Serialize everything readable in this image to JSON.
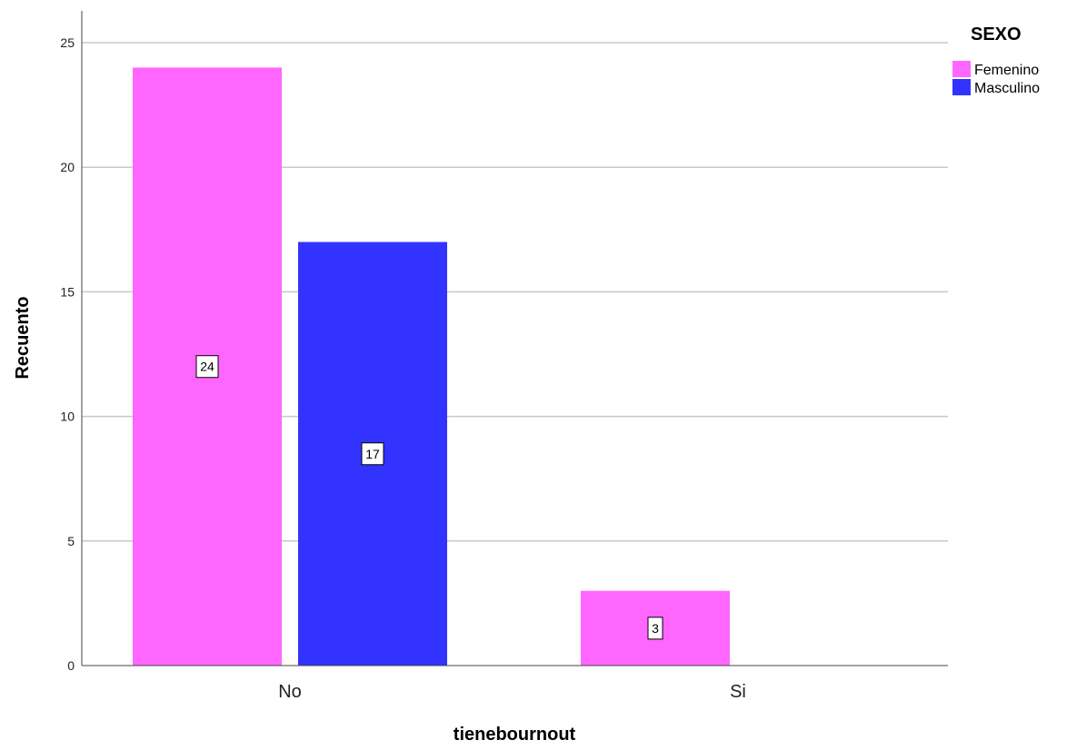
{
  "chart_data": {
    "type": "bar",
    "categories": [
      "No",
      "Si"
    ],
    "series": [
      {
        "name": "Femenino",
        "values": [
          24,
          3
        ],
        "color": "#ff66ff"
      },
      {
        "name": "Masculino",
        "values": [
          17,
          0
        ],
        "color": "#3333ff"
      }
    ],
    "xlabel": "tienebournout",
    "ylabel": "Recuento",
    "ylim": [
      0,
      25
    ],
    "yticks": [
      0,
      5,
      10,
      15,
      20,
      25
    ],
    "grid": true,
    "legend": {
      "title": "SEXO",
      "position": "top-right"
    },
    "data_labels": true
  }
}
